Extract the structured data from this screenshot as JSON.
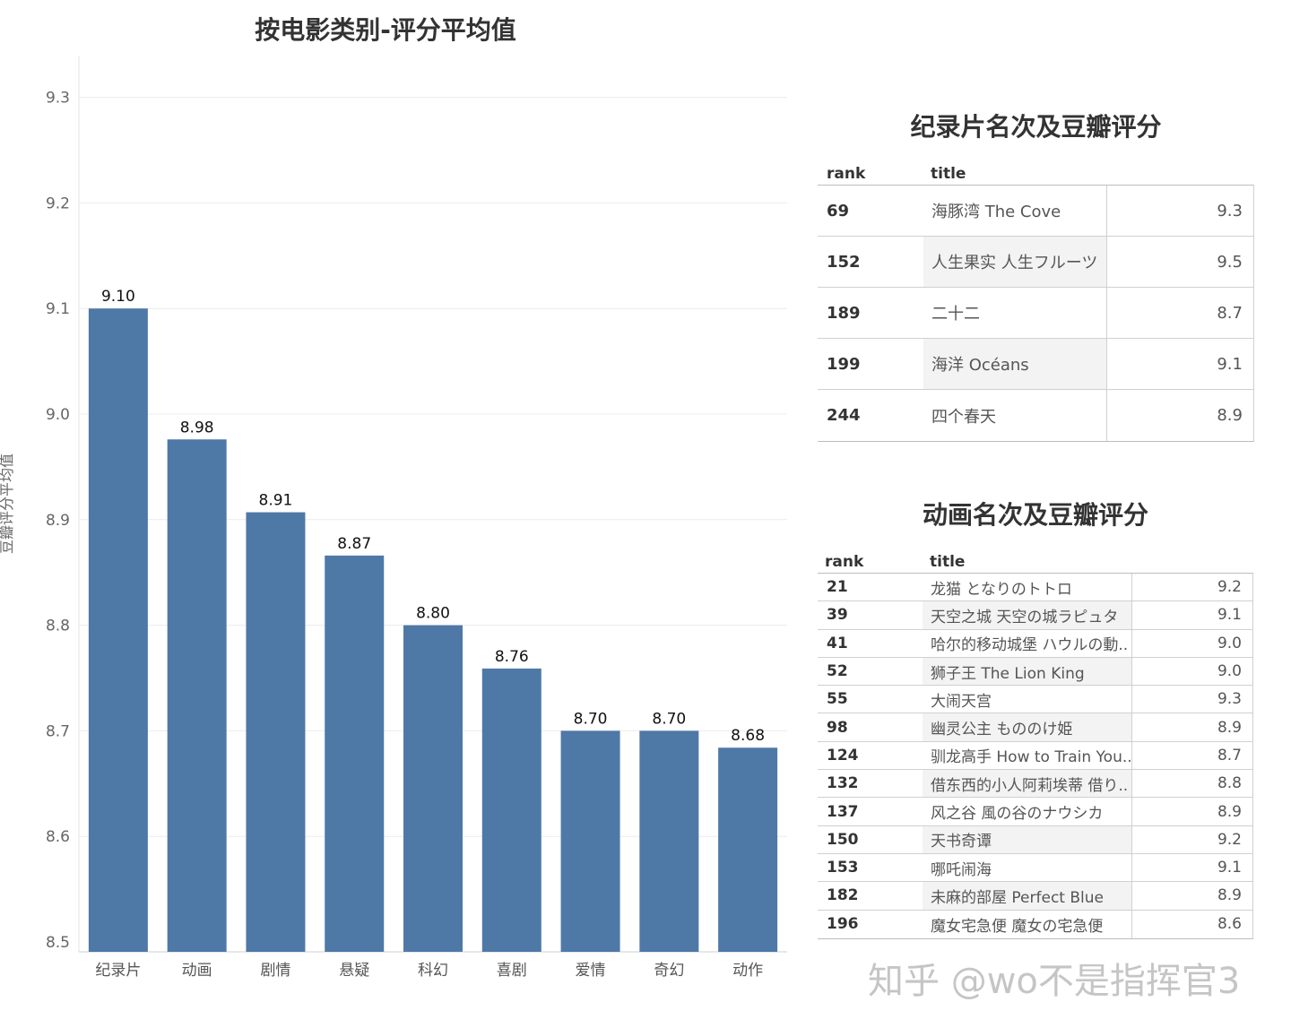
{
  "chart_data": [
    {
      "type": "bar",
      "title": "按电影类别-评分平均值",
      "ylabel": "豆瓣评分平均值",
      "xlabel": "",
      "ylim": [
        8.5,
        9.35
      ],
      "yticks": [
        "9.3",
        "9.2",
        "9.1",
        "9.0",
        "8.9",
        "8.8",
        "8.7",
        "8.6",
        "8.5"
      ],
      "grid": true,
      "color": "#4e79a7",
      "categories": [
        "纪录片",
        "动画",
        "剧情",
        "悬疑",
        "科幻",
        "喜剧",
        "爱情",
        "奇幻",
        "动作"
      ],
      "values": [
        9.1,
        8.976,
        8.907,
        8.866,
        8.8,
        8.759,
        8.7,
        8.7,
        8.684
      ],
      "value_labels": [
        "9.10",
        "8.98",
        "8.91",
        "8.87",
        "8.80",
        "8.76",
        "8.70",
        "8.70",
        "8.68"
      ]
    },
    {
      "type": "table",
      "title": "纪录片名次及豆瓣评分",
      "columns": [
        "rank",
        "title"
      ],
      "rows": [
        {
          "rank": "69",
          "title": "海豚湾 The Cove",
          "score": "9.3"
        },
        {
          "rank": "152",
          "title": "人生果实 人生フルーツ",
          "score": "9.5"
        },
        {
          "rank": "189",
          "title": "二十二",
          "score": "8.7"
        },
        {
          "rank": "199",
          "title": "海洋 Océans",
          "score": "9.1"
        },
        {
          "rank": "244",
          "title": "四个春天",
          "score": "8.9"
        }
      ]
    },
    {
      "type": "table",
      "title": "动画名次及豆瓣评分",
      "columns": [
        "rank",
        "title"
      ],
      "rows": [
        {
          "rank": "21",
          "title": "龙猫 となりのトトロ",
          "score": "9.2"
        },
        {
          "rank": "39",
          "title": "天空之城 天空の城ラピュタ",
          "score": "9.1"
        },
        {
          "rank": "41",
          "title": "哈尔的移动城堡 ハウルの動..",
          "score": "9.0"
        },
        {
          "rank": "52",
          "title": "狮子王 The Lion King",
          "score": "9.0"
        },
        {
          "rank": "55",
          "title": "大闹天宫",
          "score": "9.3"
        },
        {
          "rank": "98",
          "title": "幽灵公主 もののけ姫",
          "score": "8.9"
        },
        {
          "rank": "124",
          "title": "驯龙高手 How to Train You..",
          "score": "8.7"
        },
        {
          "rank": "132",
          "title": "借东西的小人阿莉埃蒂 借り..",
          "score": "8.8"
        },
        {
          "rank": "137",
          "title": "风之谷 風の谷のナウシカ",
          "score": "8.9"
        },
        {
          "rank": "150",
          "title": "天书奇谭",
          "score": "9.2"
        },
        {
          "rank": "153",
          "title": "哪吒闹海",
          "score": "9.1"
        },
        {
          "rank": "182",
          "title": "未麻的部屋 Perfect Blue",
          "score": "8.9"
        },
        {
          "rank": "196",
          "title": "魔女宅急便 魔女の宅急便",
          "score": "8.6"
        }
      ]
    }
  ],
  "watermark": "知乎 @wo不是指挥官3"
}
